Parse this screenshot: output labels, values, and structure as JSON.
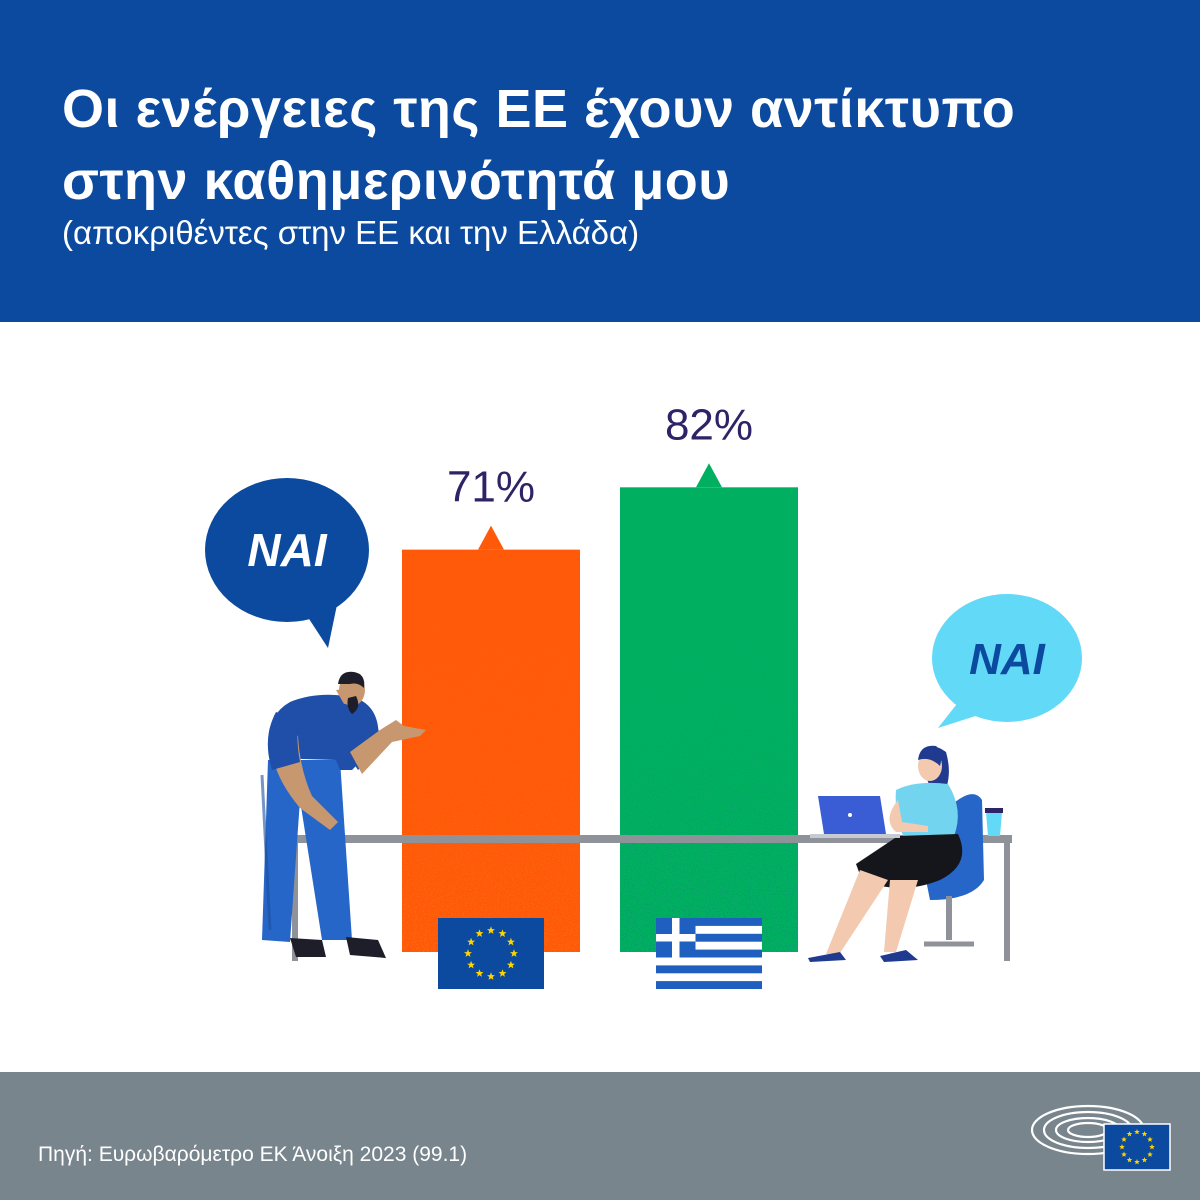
{
  "header": {
    "title_line1": "Οι ενέργειες της ΕΕ έχουν αντίκτυπο",
    "title_line2": "στην καθημερινότητά μου",
    "subtitle": "(αποκριθέντες στην ΕΕ και την Ελλάδα)"
  },
  "bubbles": {
    "left": "ΝΑΙ",
    "right": "ΝΑΙ"
  },
  "footer": {
    "source": "Πηγή: Ευρωβαρόμετρο ΕΚ Άνοιξη 2023 (99.1)"
  },
  "icons": {
    "left_flag": "eu-flag-icon",
    "right_flag": "greek-flag-icon",
    "logo": "european-parliament-logo-icon"
  },
  "colors": {
    "header_bg": "#0b4a9e",
    "footer_bg": "#78858d",
    "eu_bar": "#ff5a0a",
    "greece_bar": "#00b060",
    "value_text": "#2d2366",
    "bubble_left": "#0b4a9e",
    "bubble_right": "#62d9f7"
  },
  "chart_data": {
    "type": "bar",
    "categories": [
      "ΕΕ",
      "Ελλάδα"
    ],
    "values": [
      71,
      82
    ],
    "value_labels": [
      "71%",
      "82%"
    ],
    "unit": "%",
    "ylim": [
      0,
      100
    ],
    "title": "Οι ενέργειες της ΕΕ έχουν αντίκτυπο στην καθημερινότητά μου",
    "subtitle": "(αποκριθέντες στην ΕΕ και την Ελλάδα)",
    "grid": false,
    "legend": "none"
  }
}
